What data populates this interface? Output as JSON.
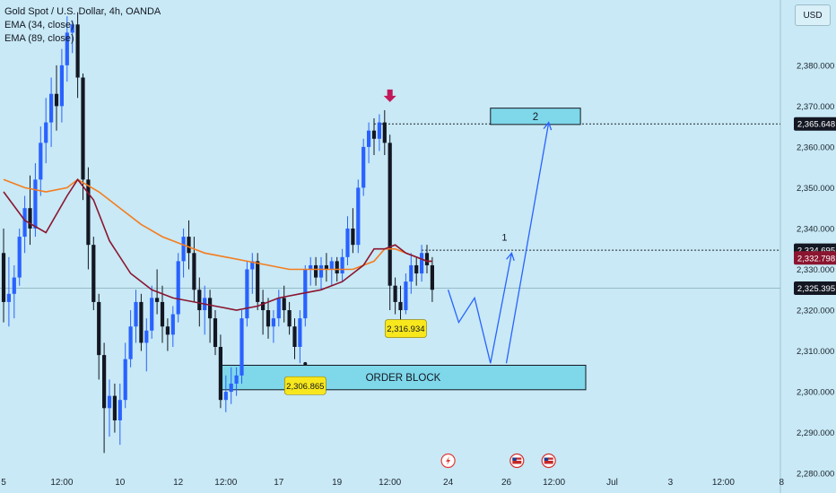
{
  "legend": {
    "title": "Gold Spot / U.S. Dollar, 4h, OANDA",
    "ema1": "EMA (34, close)",
    "ema2": "EMA (89, close)"
  },
  "currency_button": "USD",
  "colors": {
    "background": "#c8e9f5",
    "up": "#2962ff",
    "down": "#131722",
    "ema34": "#8b1530",
    "ema89": "#f57c1f",
    "projection": "#2962ff",
    "zone_fill": "#7fd7ea",
    "marker_arrow": "#c2185b",
    "price_callout": "#f7e71c"
  },
  "chart_data": {
    "type": "candlestick",
    "symbol": "Gold Spot / U.S. Dollar, 4h, OANDA",
    "ylim": [
      2275,
      2395
    ],
    "y_ticks": [
      2280,
      2290,
      2300,
      2310,
      2320,
      2330,
      2340,
      2350,
      2360,
      2370,
      2380
    ],
    "y_tick_labels": [
      "2,280.000",
      "2,290.000",
      "2,300.000",
      "2,310.000",
      "2,320.000",
      "2,330.000",
      "2,340.000",
      "2,350.000",
      "2,360.000",
      "2,370.000",
      "2,380.000"
    ],
    "x_ticks": [
      {
        "label": "5",
        "bar": 0
      },
      {
        "label": "12:00",
        "bar": 11
      },
      {
        "label": "10",
        "bar": 22
      },
      {
        "label": "12",
        "bar": 33
      },
      {
        "label": "12:00",
        "bar": 42
      },
      {
        "label": "17",
        "bar": 52
      },
      {
        "label": "19",
        "bar": 63
      },
      {
        "label": "12:00",
        "bar": 73
      },
      {
        "label": "24",
        "bar": 84
      },
      {
        "label": "26",
        "bar": 95
      },
      {
        "label": "12:00",
        "bar": 104
      },
      {
        "label": "Jul",
        "bar": 115
      },
      {
        "label": "3",
        "bar": 126
      },
      {
        "label": "12:00",
        "bar": 136
      },
      {
        "label": "8",
        "bar": 147
      }
    ],
    "candles": [
      [
        2334,
        2340,
        2317,
        2322
      ],
      [
        2322,
        2333,
        2316,
        2324
      ],
      [
        2324,
        2331,
        2318,
        2328
      ],
      [
        2328,
        2340,
        2326,
        2338
      ],
      [
        2338,
        2348,
        2334,
        2345
      ],
      [
        2345,
        2353,
        2336,
        2340
      ],
      [
        2340,
        2356,
        2338,
        2352
      ],
      [
        2352,
        2365,
        2348,
        2361
      ],
      [
        2361,
        2372,
        2356,
        2366
      ],
      [
        2366,
        2377,
        2360,
        2373
      ],
      [
        2373,
        2380,
        2364,
        2370
      ],
      [
        2370,
        2384,
        2366,
        2380
      ],
      [
        2380,
        2392,
        2376,
        2388
      ],
      [
        2388,
        2391,
        2383,
        2390
      ],
      [
        2390,
        2393,
        2372,
        2377
      ],
      [
        2377,
        2378,
        2347,
        2352
      ],
      [
        2352,
        2355,
        2330,
        2336
      ],
      [
        2336,
        2338,
        2320,
        2322
      ],
      [
        2322,
        2324,
        2303,
        2309
      ],
      [
        2309,
        2312,
        2285,
        2296
      ],
      [
        2296,
        2303,
        2289,
        2299
      ],
      [
        2299,
        2302,
        2290,
        2293
      ],
      [
        2293,
        2302,
        2287,
        2298
      ],
      [
        2298,
        2312,
        2296,
        2308
      ],
      [
        2308,
        2320,
        2306,
        2316
      ],
      [
        2316,
        2325,
        2312,
        2322
      ],
      [
        2322,
        2324,
        2310,
        2312
      ],
      [
        2312,
        2318,
        2305,
        2315
      ],
      [
        2315,
        2326,
        2313,
        2323
      ],
      [
        2323,
        2330,
        2319,
        2322
      ],
      [
        2322,
        2326,
        2312,
        2316
      ],
      [
        2316,
        2318,
        2310,
        2314
      ],
      [
        2314,
        2321,
        2311,
        2319
      ],
      [
        2319,
        2334,
        2317,
        2332
      ],
      [
        2332,
        2340,
        2328,
        2338
      ],
      [
        2338,
        2342,
        2330,
        2334
      ],
      [
        2334,
        2338,
        2322,
        2325
      ],
      [
        2325,
        2328,
        2316,
        2320
      ],
      [
        2320,
        2326,
        2314,
        2323
      ],
      [
        2323,
        2325,
        2312,
        2318
      ],
      [
        2318,
        2320,
        2309,
        2311
      ],
      [
        2311,
        2314,
        2296,
        2298
      ],
      [
        2298,
        2304,
        2295,
        2300
      ],
      [
        2300,
        2306,
        2297,
        2302
      ],
      [
        2302,
        2306,
        2299,
        2304
      ],
      [
        2304,
        2320,
        2302,
        2318
      ],
      [
        2318,
        2332,
        2316,
        2330
      ],
      [
        2330,
        2334,
        2324,
        2332
      ],
      [
        2332,
        2334,
        2320,
        2322
      ],
      [
        2322,
        2325,
        2314,
        2320
      ],
      [
        2320,
        2323,
        2313,
        2316
      ],
      [
        2316,
        2320,
        2312,
        2318
      ],
      [
        2318,
        2325,
        2316,
        2323
      ],
      [
        2323,
        2326,
        2317,
        2320
      ],
      [
        2320,
        2322,
        2314,
        2316
      ],
      [
        2316,
        2318,
        2308,
        2311
      ],
      [
        2311,
        2320,
        2307,
        2318
      ],
      [
        2318,
        2331,
        2316,
        2330
      ],
      [
        2330,
        2333,
        2326,
        2331
      ],
      [
        2331,
        2333,
        2326,
        2328
      ],
      [
        2328,
        2333,
        2325,
        2331
      ],
      [
        2331,
        2334,
        2327,
        2330
      ],
      [
        2330,
        2333,
        2326,
        2332
      ],
      [
        2332,
        2333,
        2327,
        2329
      ],
      [
        2329,
        2335,
        2327,
        2333
      ],
      [
        2333,
        2343,
        2331,
        2340
      ],
      [
        2340,
        2345,
        2334,
        2336
      ],
      [
        2336,
        2352,
        2334,
        2350
      ],
      [
        2350,
        2362,
        2348,
        2360
      ],
      [
        2360,
        2366,
        2356,
        2364
      ],
      [
        2364,
        2367,
        2358,
        2362
      ],
      [
        2362,
        2368,
        2359,
        2366
      ],
      [
        2366,
        2369,
        2358,
        2361
      ],
      [
        2361,
        2363,
        2320,
        2326
      ],
      [
        2326,
        2328,
        2319,
        2322
      ],
      [
        2322,
        2326,
        2316,
        2320
      ],
      [
        2320,
        2329,
        2319,
        2327
      ],
      [
        2327,
        2334,
        2324,
        2331
      ],
      [
        2331,
        2333,
        2326,
        2329
      ],
      [
        2329,
        2336,
        2327,
        2334
      ],
      [
        2334,
        2336,
        2329,
        2331
      ],
      [
        2331,
        2333,
        2322,
        2325
      ]
    ],
    "ema_34": {
      "name": "EMA (34, close)",
      "values": [
        [
          0,
          2349
        ],
        [
          4,
          2342
        ],
        [
          8,
          2339
        ],
        [
          12,
          2348
        ],
        [
          14,
          2352
        ],
        [
          17,
          2347
        ],
        [
          20,
          2337
        ],
        [
          24,
          2329
        ],
        [
          28,
          2325
        ],
        [
          32,
          2323
        ],
        [
          36,
          2322
        ],
        [
          40,
          2321
        ],
        [
          44,
          2320
        ],
        [
          48,
          2321
        ],
        [
          52,
          2323
        ],
        [
          56,
          2324
        ],
        [
          60,
          2325
        ],
        [
          64,
          2327
        ],
        [
          68,
          2331
        ],
        [
          70,
          2335
        ],
        [
          72,
          2335
        ],
        [
          74,
          2336
        ],
        [
          76,
          2334
        ],
        [
          78,
          2333
        ],
        [
          80,
          2332
        ],
        [
          81,
          2332
        ]
      ]
    },
    "ema_89": {
      "name": "EMA (89, close)",
      "values": [
        [
          0,
          2352
        ],
        [
          4,
          2350
        ],
        [
          8,
          2349
        ],
        [
          12,
          2350
        ],
        [
          14,
          2352
        ],
        [
          18,
          2349
        ],
        [
          22,
          2345
        ],
        [
          26,
          2341
        ],
        [
          30,
          2338
        ],
        [
          34,
          2336
        ],
        [
          38,
          2334
        ],
        [
          42,
          2333
        ],
        [
          46,
          2332
        ],
        [
          50,
          2331
        ],
        [
          54,
          2330
        ],
        [
          58,
          2330
        ],
        [
          62,
          2330
        ],
        [
          66,
          2330
        ],
        [
          70,
          2332
        ],
        [
          72,
          2335
        ],
        [
          74,
          2335
        ],
        [
          76,
          2334
        ],
        [
          78,
          2333
        ],
        [
          80,
          2332
        ],
        [
          81,
          2332
        ]
      ]
    },
    "current_price_line": 2325.395,
    "price_labels": [
      {
        "text": "2,365.648",
        "value": 2365.648,
        "style": "dark"
      },
      {
        "text": "2,334.695",
        "value": 2334.695,
        "style": "dark"
      },
      {
        "text": "2,332.798",
        "value": 2332.798,
        "style": "red"
      },
      {
        "text": "2,325.395",
        "value": 2325.395,
        "style": "dark"
      }
    ],
    "dotted_levels": [
      {
        "value": 2365.648,
        "from_bar": 70
      },
      {
        "value": 2334.695,
        "from_bar": 79
      }
    ],
    "zones": [
      {
        "label": "ORDER BLOCK",
        "from_bar": 41,
        "to_bar": 110,
        "low": 2300.5,
        "high": 2306.5
      },
      {
        "label": "2",
        "from_bar": 92,
        "to_bar": 109,
        "low": 2365.5,
        "high": 2369.5
      }
    ],
    "callouts": [
      {
        "text": "2,306.865",
        "bar": 57,
        "value": 2306.865,
        "label_value": 2301.5
      },
      {
        "text": "2,316.934",
        "bar": 76,
        "value": 2316.934,
        "label_value": 2315.5
      }
    ],
    "projections": [
      {
        "label": "1",
        "points": [
          [
            84,
            2325
          ],
          [
            86,
            2317
          ],
          [
            89,
            2323
          ],
          [
            92,
            2307
          ],
          [
            96,
            2334
          ]
        ]
      },
      {
        "label": "",
        "points": [
          [
            95,
            2307
          ],
          [
            103,
            2366
          ]
        ]
      }
    ],
    "down_arrow": {
      "bar": 73,
      "value": 2371
    },
    "event_icons": [
      {
        "type": "flash",
        "bar": 84
      },
      {
        "type": "flag",
        "bar": 97
      },
      {
        "type": "flag",
        "bar": 103
      }
    ]
  }
}
